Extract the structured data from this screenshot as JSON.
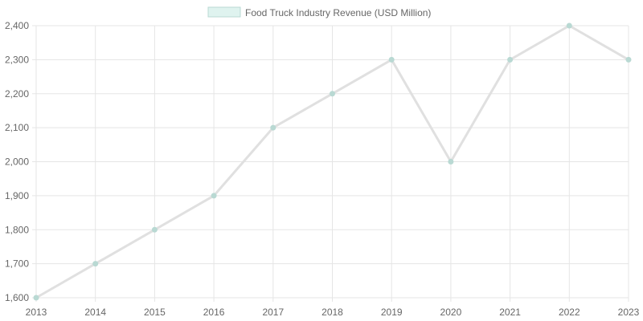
{
  "chart_data": {
    "type": "line",
    "title": "",
    "xlabel": "",
    "ylabel": "",
    "categories": [
      "2013",
      "2014",
      "2015",
      "2016",
      "2017",
      "2018",
      "2019",
      "2020",
      "2021",
      "2022",
      "2023"
    ],
    "series": [
      {
        "name": "Food Truck Industry Revenue (USD Million)",
        "values": [
          1600,
          1700,
          1800,
          1900,
          2100,
          2200,
          2300,
          2000,
          2300,
          2400,
          2300
        ],
        "line_color": "#e0e0e0",
        "point_color": "#b9d9d3",
        "legend_fill": "#dff3ef",
        "legend_stroke": "#b9d9d3"
      }
    ],
    "ylim": [
      1600,
      2400
    ],
    "y_ticks": [
      1600,
      1700,
      1800,
      1900,
      2000,
      2100,
      2200,
      2300,
      2400
    ],
    "y_tick_labels": [
      "1,600",
      "1,700",
      "1,800",
      "1,900",
      "2,000",
      "2,100",
      "2,200",
      "2,300",
      "2,400"
    ],
    "grid": true,
    "legend_position": "top-center"
  }
}
